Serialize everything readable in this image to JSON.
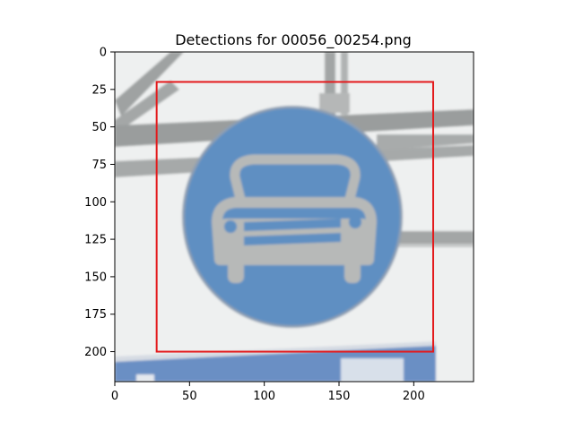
{
  "figure": {
    "title": "Detections for 00056_00254.png"
  },
  "image": {
    "description_icon": "traffic-sign-photo",
    "xlim": [
      0,
      240
    ],
    "ylim": [
      220,
      0
    ]
  },
  "axes": {
    "x_ticks": [
      0,
      50,
      100,
      150,
      200
    ],
    "y_ticks": [
      0,
      25,
      50,
      75,
      100,
      125,
      150,
      175,
      200
    ]
  },
  "detections": [
    {
      "x1": 28,
      "y1": 20,
      "x2": 213,
      "y2": 200,
      "color": "#e31a1c"
    }
  ],
  "colors": {
    "sign_blue": "#5f8fc2",
    "sign_white": "#b7b9b8",
    "background": "#eef0f0",
    "pole_gray": "#9a9d9d"
  }
}
